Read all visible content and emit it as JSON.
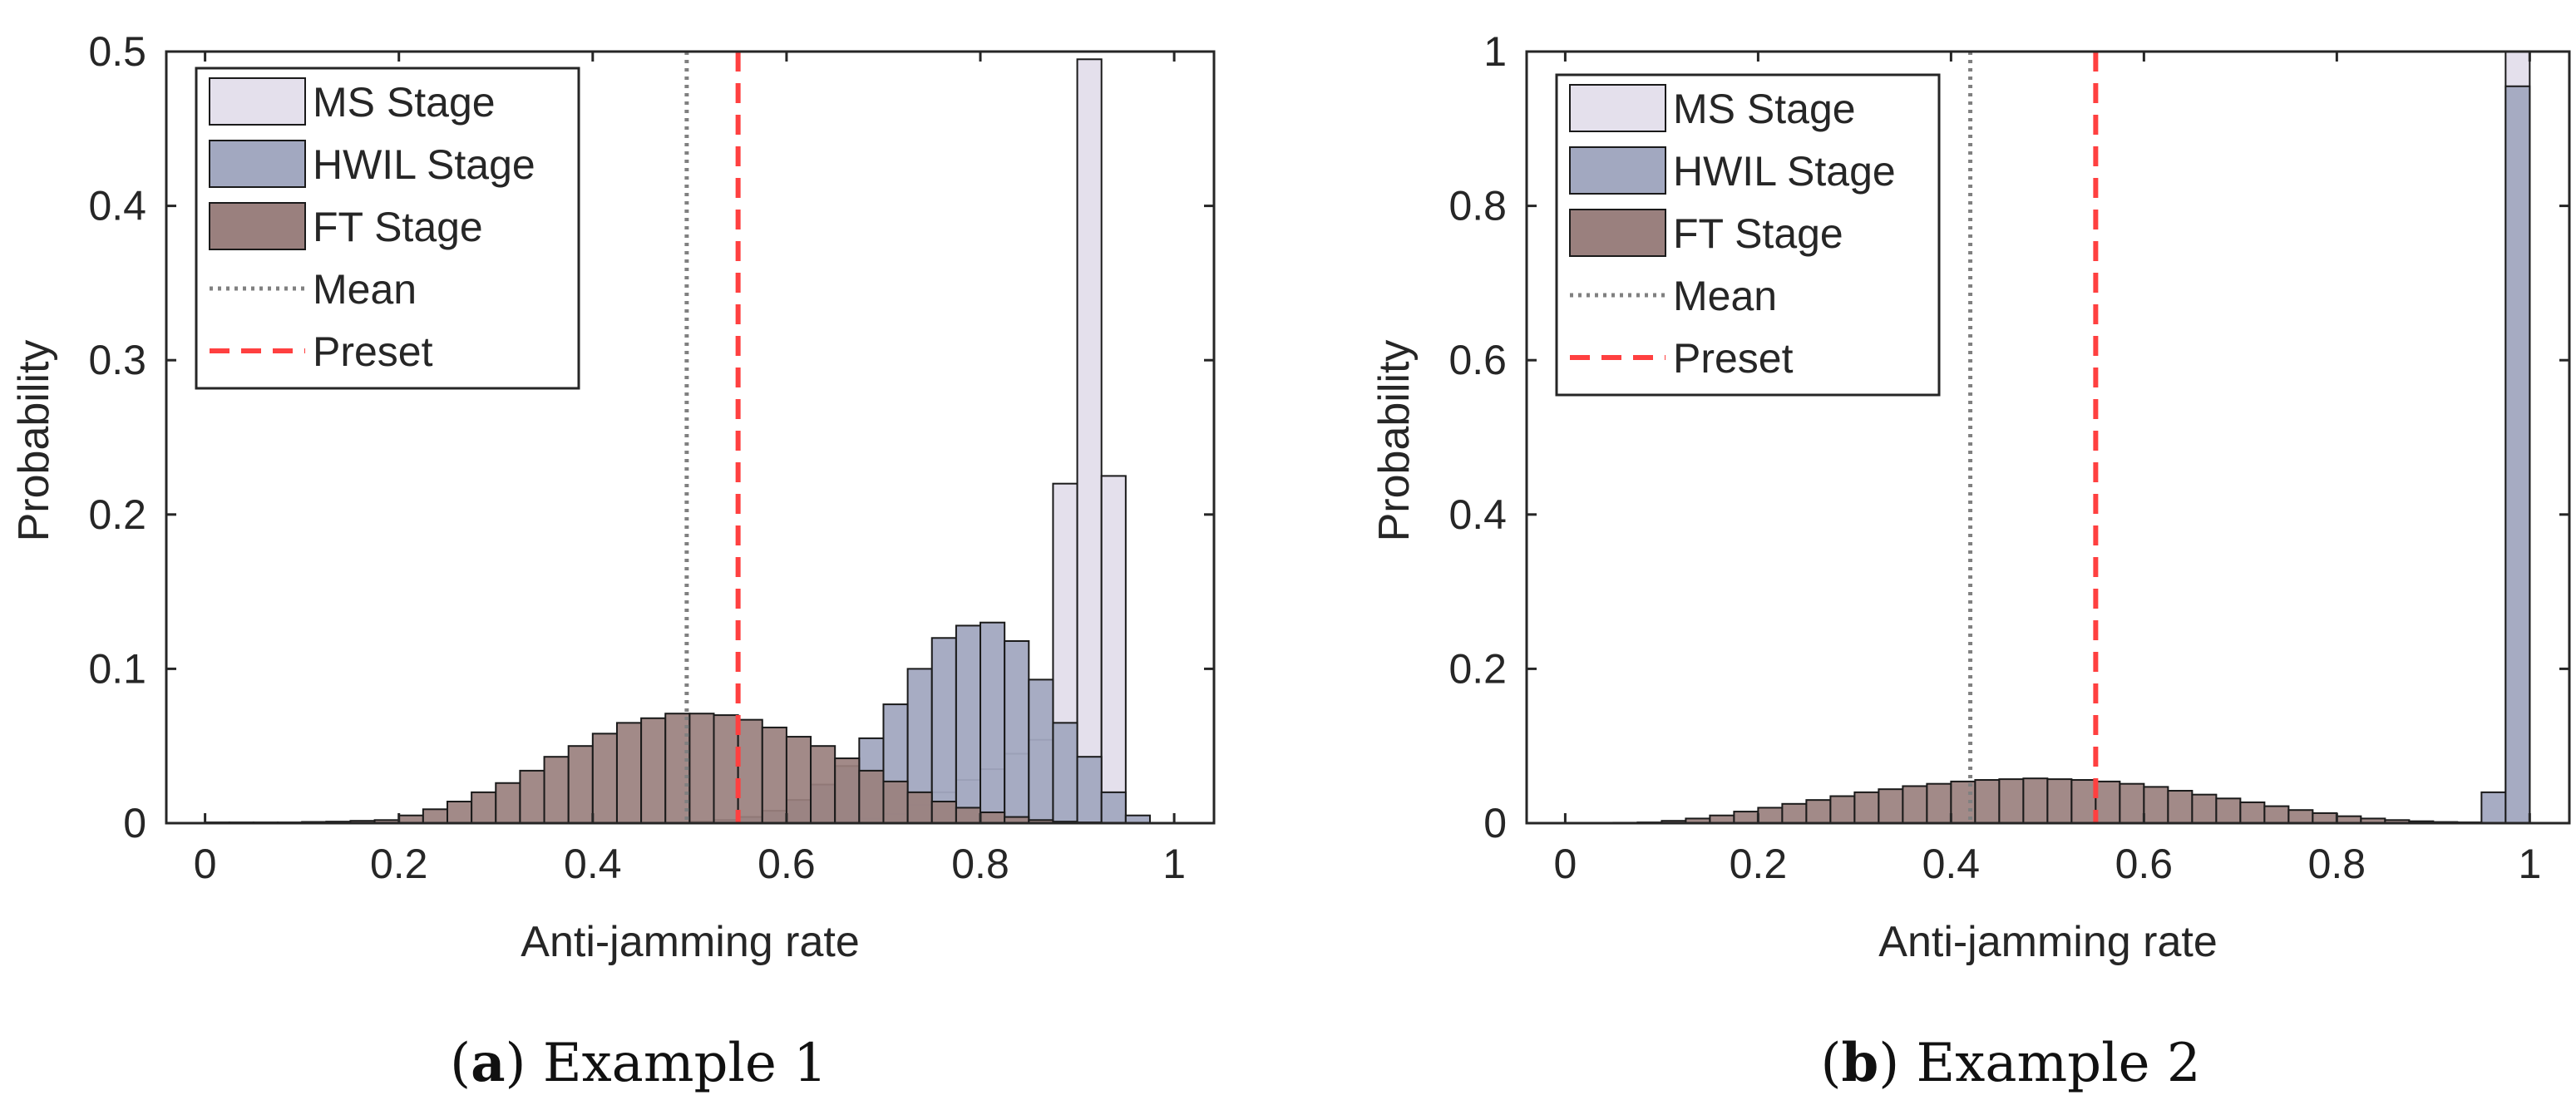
{
  "captions": [
    {
      "letter": "a",
      "prefix": "(",
      "suffix": ") Example 1"
    },
    {
      "letter": "b",
      "prefix": "(",
      "suffix": ") Example 2"
    }
  ],
  "colors": {
    "ms": "#e4e0ec",
    "hwil": "#a2a8c0",
    "ft": "#9a807e",
    "mean": "#808080",
    "preset": "#ff4040",
    "edge": "#1a1a1a"
  },
  "chart_data": [
    {
      "type": "histogram",
      "title": "",
      "xlabel": "Anti-jamming rate",
      "ylabel": "Probability",
      "xlim": [
        0,
        1
      ],
      "ylim": [
        0,
        0.5
      ],
      "xticks": [
        "0",
        "0.2",
        "0.4",
        "0.6",
        "0.8",
        "1"
      ],
      "yticks": [
        "0",
        "0.1",
        "0.2",
        "0.3",
        "0.4",
        "0.5"
      ],
      "xtick_values": [
        0,
        0.2,
        0.4,
        0.6,
        0.8,
        1
      ],
      "ytick_values": [
        0,
        0.1,
        0.2,
        0.3,
        0.4,
        0.5
      ],
      "bin_width": 0.025,
      "mean": 0.497,
      "preset": 0.55,
      "legend": [
        "MS Stage",
        "HWIL Stage",
        "FT Stage",
        "Mean",
        "Preset"
      ],
      "legend_position": "top-left",
      "series": [
        {
          "name": "MS Stage",
          "start": 0.65,
          "values": [
            0.001,
            0.003,
            0.006,
            0.012,
            0.02,
            0.028,
            0.035,
            0.045,
            0.054,
            0.22,
            0.495,
            0.225
          ]
        },
        {
          "name": "HWIL Stage",
          "start": 0.5,
          "values": [
            0.001,
            0.002,
            0.004,
            0.008,
            0.015,
            0.025,
            0.037,
            0.055,
            0.077,
            0.1,
            0.12,
            0.128,
            0.13,
            0.118,
            0.093,
            0.065,
            0.043,
            0.02,
            0.005
          ]
        },
        {
          "name": "FT Stage",
          "start": 0.0,
          "values": [
            0.0005,
            0.0005,
            0.0005,
            0.0005,
            0.0008,
            0.001,
            0.0015,
            0.002,
            0.005,
            0.009,
            0.014,
            0.02,
            0.026,
            0.034,
            0.043,
            0.05,
            0.058,
            0.065,
            0.068,
            0.071,
            0.071,
            0.07,
            0.067,
            0.062,
            0.056,
            0.05,
            0.042,
            0.034,
            0.027,
            0.02,
            0.014,
            0.01,
            0.007,
            0.004,
            0.002,
            0.001,
            0.0005,
            0.0003,
            0.0002,
            0.0001
          ]
        }
      ]
    },
    {
      "type": "histogram",
      "title": "",
      "xlabel": "Anti-jamming rate",
      "ylabel": "Probability",
      "xlim": [
        0,
        1
      ],
      "ylim": [
        0,
        1
      ],
      "xticks": [
        "0",
        "0.2",
        "0.4",
        "0.6",
        "0.8",
        "1"
      ],
      "yticks": [
        "0",
        "0.2",
        "0.4",
        "0.6",
        "0.8",
        "1"
      ],
      "xtick_values": [
        0,
        0.2,
        0.4,
        0.6,
        0.8,
        1
      ],
      "ytick_values": [
        0,
        0.2,
        0.4,
        0.6,
        0.8,
        1
      ],
      "bin_width": 0.025,
      "mean": 0.42,
      "preset": 0.55,
      "legend": [
        "MS Stage",
        "HWIL Stage",
        "FT Stage",
        "Mean",
        "Preset"
      ],
      "legend_position": "top-left",
      "series": [
        {
          "name": "MS Stage",
          "start": 0.975,
          "values": [
            1.0
          ]
        },
        {
          "name": "HWIL Stage",
          "start": 0.925,
          "values": [
            0.001,
            0.04,
            0.955
          ]
        },
        {
          "name": "FT Stage",
          "start": 0.0,
          "values": [
            0.0003,
            0.0004,
            0.0006,
            0.001,
            0.003,
            0.006,
            0.01,
            0.015,
            0.02,
            0.025,
            0.03,
            0.035,
            0.04,
            0.044,
            0.048,
            0.051,
            0.054,
            0.056,
            0.057,
            0.058,
            0.057,
            0.056,
            0.054,
            0.051,
            0.047,
            0.042,
            0.037,
            0.032,
            0.027,
            0.022,
            0.017,
            0.013,
            0.009,
            0.006,
            0.004,
            0.0025,
            0.0015,
            0.0008,
            0.0004,
            0.0002
          ]
        }
      ]
    }
  ]
}
